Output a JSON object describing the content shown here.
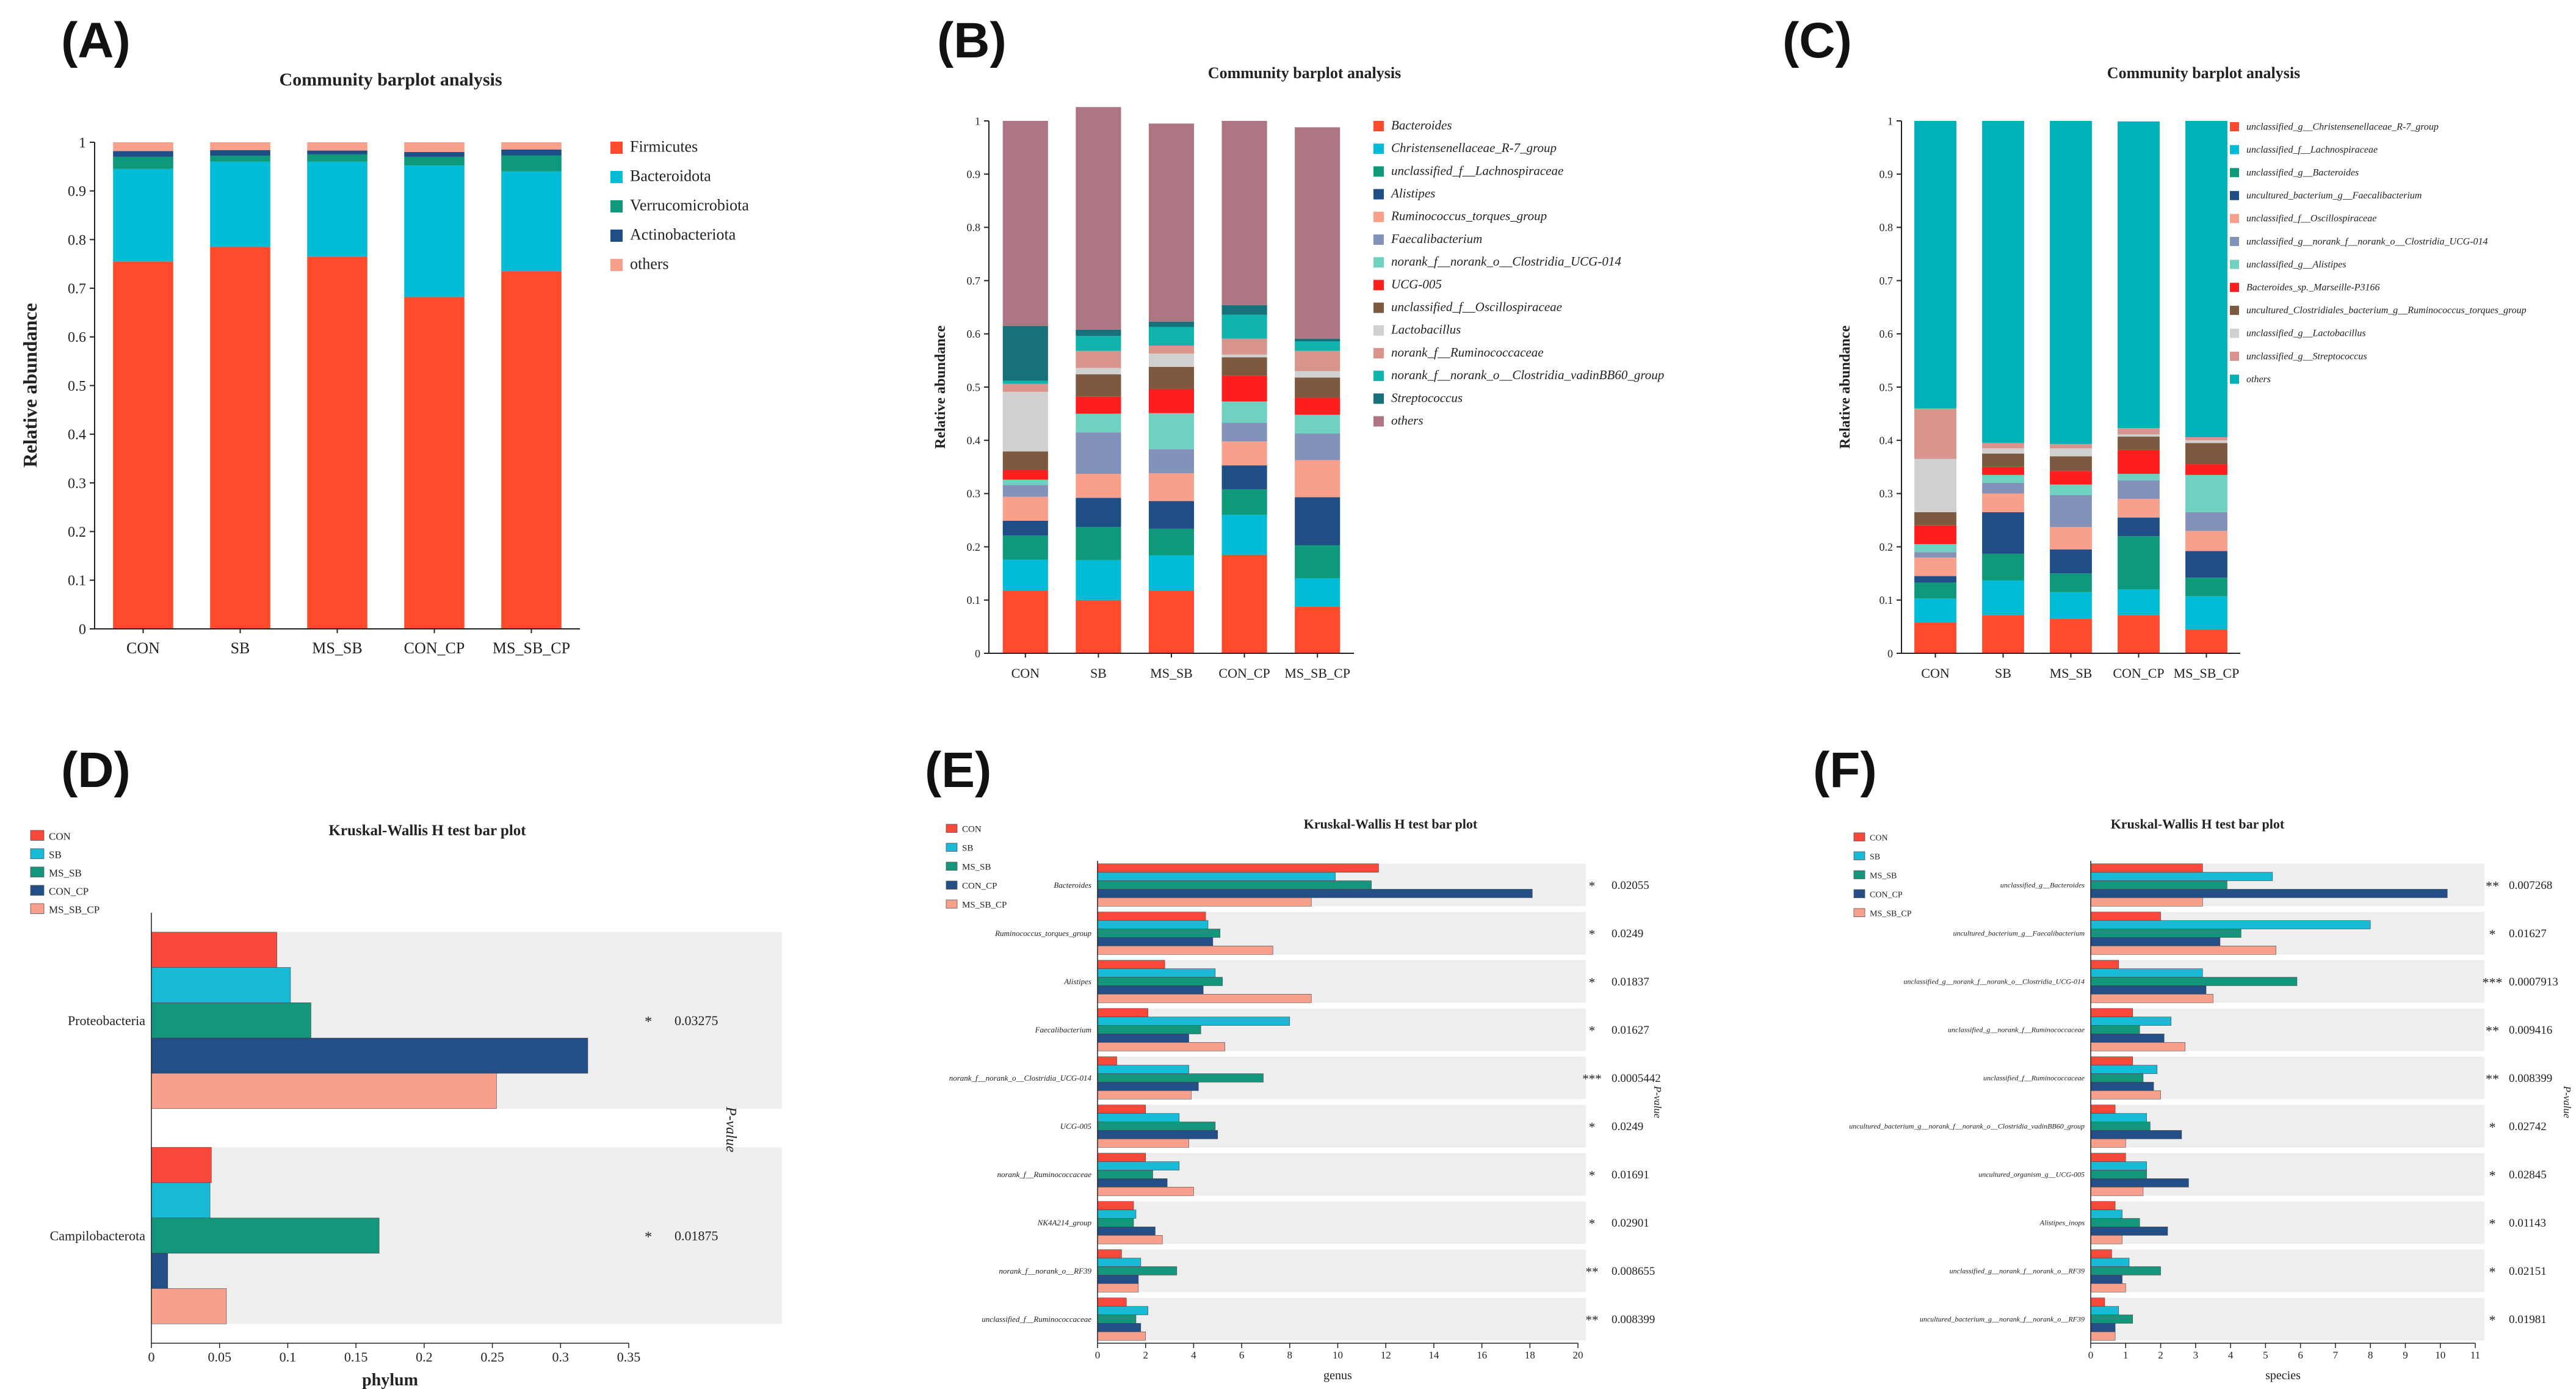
{
  "colors": {
    "axis": "#222222",
    "band": "#eeeeee",
    "sig": "#e8302b",
    "groups": [
      "#f7483a",
      "#17bbd6",
      "#14967c",
      "#244f86",
      "#f9a08c"
    ]
  },
  "panels": {
    "A": {
      "label": "(A)"
    },
    "B": {
      "label": "(B)"
    },
    "C": {
      "label": "(C)"
    },
    "D": {
      "label": "(D)"
    },
    "E": {
      "label": "(E)"
    },
    "F": {
      "label": "(F)"
    }
  },
  "chart_data": [
    {
      "id": "A",
      "type": "stacked-bar",
      "title": "Community barplot analysis",
      "xlabel": "",
      "ylabel": "Relative abundance",
      "ylim": [
        0,
        1
      ],
      "yticks": [
        "0",
        "0.1",
        "0.2",
        "0.3",
        "0.4",
        "0.5",
        "0.6",
        "0.7",
        "0.8",
        "0.9",
        "1"
      ],
      "categories": [
        "CON",
        "SB",
        "MS_SB",
        "CON_CP",
        "MS_SB_CP"
      ],
      "legend_italic": false,
      "series": [
        {
          "name": "Firmicutes",
          "color": "#ff4a2c",
          "values": [
            0.755,
            0.785,
            0.765,
            0.682,
            0.735
          ]
        },
        {
          "name": "Bacteroidota",
          "color": "#00bcd6",
          "values": [
            0.19,
            0.175,
            0.195,
            0.27,
            0.205
          ]
        },
        {
          "name": "Verrucomicrobiota",
          "color": "#0e9a7a",
          "values": [
            0.025,
            0.012,
            0.015,
            0.018,
            0.033
          ]
        },
        {
          "name": "Actinobacteriota",
          "color": "#1f4e86",
          "values": [
            0.012,
            0.012,
            0.008,
            0.01,
            0.012
          ]
        },
        {
          "name": "others",
          "color": "#f9a08c",
          "values": [
            0.018,
            0.016,
            0.017,
            0.02,
            0.015
          ]
        }
      ]
    },
    {
      "id": "B",
      "type": "stacked-bar",
      "title": "Community barplot analysis",
      "xlabel": "",
      "ylabel": "Relative abundance",
      "ylim": [
        0,
        1
      ],
      "yticks": [
        "0",
        "0.1",
        "0.2",
        "0.3",
        "0.4",
        "0.5",
        "0.6",
        "0.7",
        "0.8",
        "0.9",
        "1"
      ],
      "categories": [
        "CON",
        "SB",
        "MS_SB",
        "CON_CP",
        "MS_SB_CP"
      ],
      "legend_italic": true,
      "series": [
        {
          "name": "Bacteroides",
          "color": "#ff4a2c",
          "values": [
            0.118,
            0.1,
            0.118,
            0.185,
            0.088
          ]
        },
        {
          "name": "Christensenellaceae_R-7_group",
          "color": "#00bcd6",
          "values": [
            0.058,
            0.075,
            0.066,
            0.075,
            0.053
          ]
        },
        {
          "name": "unclassified_f__Lachnospiraceae",
          "color": "#0e9a7a",
          "values": [
            0.045,
            0.062,
            0.05,
            0.048,
            0.062
          ]
        },
        {
          "name": "Alistipes",
          "color": "#1f4e86",
          "values": [
            0.028,
            0.055,
            0.052,
            0.045,
            0.09
          ]
        },
        {
          "name": "Ruminococcus_torques_group",
          "color": "#f9a08c",
          "values": [
            0.045,
            0.045,
            0.052,
            0.045,
            0.07
          ]
        },
        {
          "name": "Faecalibacterium",
          "color": "#8392b9",
          "values": [
            0.022,
            0.078,
            0.045,
            0.035,
            0.05
          ]
        },
        {
          "name": "norank_f__norank_o__Clostridia_UCG-014",
          "color": "#6fd1bf",
          "values": [
            0.01,
            0.035,
            0.068,
            0.04,
            0.035
          ]
        },
        {
          "name": "UCG-005",
          "color": "#ff1e1e",
          "values": [
            0.018,
            0.032,
            0.045,
            0.048,
            0.032
          ]
        },
        {
          "name": "unclassified_f__Oscillospiraceae",
          "color": "#7d5a3f",
          "values": [
            0.035,
            0.042,
            0.042,
            0.035,
            0.038
          ]
        },
        {
          "name": "Lactobacillus",
          "color": "#d0d0d0",
          "values": [
            0.112,
            0.012,
            0.025,
            0.005,
            0.012
          ]
        },
        {
          "name": "norank_f__Ruminococcaceae",
          "color": "#d9958d",
          "values": [
            0.015,
            0.032,
            0.015,
            0.03,
            0.038
          ]
        },
        {
          "name": "norank_f__norank_o__Clostridia_vadinBB60_group",
          "color": "#11b3ad",
          "values": [
            0.006,
            0.028,
            0.035,
            0.045,
            0.018
          ]
        },
        {
          "name": "Streptococcus",
          "color": "#16717a",
          "values": [
            0.103,
            0.012,
            0.01,
            0.018,
            0.005
          ]
        },
        {
          "name": "others",
          "color": "#ae7683",
          "values": [
            0.385,
            0.418,
            0.372,
            0.346,
            0.397
          ]
        }
      ]
    },
    {
      "id": "C",
      "type": "stacked-bar",
      "title": "Community barplot analysis",
      "xlabel": "",
      "ylabel": "Relative abundance",
      "ylim": [
        0,
        1
      ],
      "yticks": [
        "0",
        "0.1",
        "0.2",
        "0.3",
        "0.4",
        "0.5",
        "0.6",
        "0.7",
        "0.8",
        "0.9",
        "1"
      ],
      "categories": [
        "CON",
        "SB",
        "MS_SB",
        "CON_CP",
        "MS_SB_CP"
      ],
      "legend_italic": true,
      "series": [
        {
          "name": "unclassified_g__Christensenellaceae_R-7_group",
          "color": "#ff4a2c",
          "values": [
            0.058,
            0.072,
            0.065,
            0.072,
            0.045
          ]
        },
        {
          "name": "unclassified_f__Lachnospiraceae",
          "color": "#00bcd6",
          "values": [
            0.045,
            0.065,
            0.05,
            0.048,
            0.062
          ]
        },
        {
          "name": "unclassified_g__Bacteroides",
          "color": "#0e9a7a",
          "values": [
            0.03,
            0.05,
            0.035,
            0.1,
            0.035
          ]
        },
        {
          "name": "uncultured_bacterium_g__Faecalibacterium",
          "color": "#1f4e86",
          "values": [
            0.012,
            0.078,
            0.045,
            0.035,
            0.05
          ]
        },
        {
          "name": "unclassified_f__Oscillospiraceae",
          "color": "#f9a08c",
          "values": [
            0.035,
            0.035,
            0.042,
            0.035,
            0.038
          ]
        },
        {
          "name": "unclassified_g__norank_f__norank_o__Clostridia_UCG-014",
          "color": "#8392b9",
          "values": [
            0.01,
            0.02,
            0.06,
            0.035,
            0.035
          ]
        },
        {
          "name": "unclassified_g__Alistipes",
          "color": "#6fd1bf",
          "values": [
            0.015,
            0.015,
            0.02,
            0.012,
            0.07
          ]
        },
        {
          "name": "Bacteroides_sp._Marseille-P3166",
          "color": "#ff1e1e",
          "values": [
            0.035,
            0.015,
            0.025,
            0.045,
            0.02
          ]
        },
        {
          "name": "uncultured_Clostridiales_bacterium_g__Ruminococcus_torques_group",
          "color": "#7d5a3f",
          "values": [
            0.025,
            0.025,
            0.028,
            0.025,
            0.04
          ]
        },
        {
          "name": "unclassified_g__Lactobacillus",
          "color": "#d0d0d0",
          "values": [
            0.1,
            0.01,
            0.015,
            0.004,
            0.005
          ]
        },
        {
          "name": "unclassified_g__Streptococcus",
          "color": "#d9958d",
          "values": [
            0.095,
            0.01,
            0.008,
            0.012,
            0.006
          ]
        },
        {
          "name": "others",
          "color": "#00b2b7",
          "values": [
            0.54,
            0.605,
            0.607,
            0.576,
            0.594
          ]
        }
      ]
    },
    {
      "id": "D",
      "type": "grouped-hbar",
      "title": "Kruskal-Wallis H test bar plot",
      "xlabel": "phylum",
      "pvalue_label": "P-value",
      "xlim": [
        0,
        0.35
      ],
      "xticks": [
        "0",
        "0.05",
        "0.1",
        "0.15",
        "0.2",
        "0.25",
        "0.3",
        "0.35"
      ],
      "groups": [
        "CON",
        "SB",
        "MS_SB",
        "CON_CP",
        "MS_SB_CP"
      ],
      "categories": [
        {
          "name": "Proteobacteria",
          "values": [
            0.092,
            0.102,
            0.117,
            0.32,
            0.253
          ],
          "stars": "*",
          "p": "0.03275"
        },
        {
          "name": "Campilobacterota",
          "values": [
            0.044,
            0.043,
            0.167,
            0.012,
            0.055
          ],
          "stars": "*",
          "p": "0.01875"
        }
      ]
    },
    {
      "id": "E",
      "type": "grouped-hbar",
      "title": "Kruskal-Wallis H test bar plot",
      "xlabel": "genus",
      "pvalue_label": "P-value",
      "xlim": [
        0,
        20
      ],
      "xticks": [
        "0",
        "2",
        "4",
        "6",
        "8",
        "10",
        "12",
        "14",
        "16",
        "18",
        "20"
      ],
      "groups": [
        "CON",
        "SB",
        "MS_SB",
        "CON_CP",
        "MS_SB_CP"
      ],
      "categories": [
        {
          "name": "Bacteroides",
          "values": [
            11.7,
            9.9,
            11.4,
            18.1,
            8.9
          ],
          "stars": "*",
          "p": "0.02055"
        },
        {
          "name": "Ruminococcus_torques_group",
          "values": [
            4.5,
            4.6,
            5.1,
            4.8,
            7.3
          ],
          "stars": "*",
          "p": "0.0249"
        },
        {
          "name": "Alistipes",
          "values": [
            2.8,
            4.9,
            5.2,
            4.4,
            8.9
          ],
          "stars": "*",
          "p": "0.01837"
        },
        {
          "name": "Faecalibacterium",
          "values": [
            2.1,
            8.0,
            4.3,
            3.8,
            5.3
          ],
          "stars": "*",
          "p": "0.01627"
        },
        {
          "name": "norank_f__norank_o__Clostridia_UCG-014",
          "values": [
            0.8,
            3.8,
            6.9,
            4.2,
            3.9
          ],
          "stars": "***",
          "p": "0.0005442"
        },
        {
          "name": "UCG-005",
          "values": [
            2.0,
            3.4,
            4.9,
            5.0,
            3.8
          ],
          "stars": "*",
          "p": "0.0249"
        },
        {
          "name": "norank_f__Ruminococcaceae",
          "values": [
            2.0,
            3.4,
            2.3,
            2.9,
            4.0
          ],
          "stars": "*",
          "p": "0.01691"
        },
        {
          "name": "NK4A214_group",
          "values": [
            1.5,
            1.6,
            1.5,
            2.4,
            2.7
          ],
          "stars": "*",
          "p": "0.02901"
        },
        {
          "name": "norank_f__norank_o__RF39",
          "values": [
            1.0,
            1.8,
            3.3,
            1.7,
            1.7
          ],
          "stars": "**",
          "p": "0.008655"
        },
        {
          "name": "unclassified_f__Ruminococcaceae",
          "values": [
            1.2,
            2.1,
            1.6,
            1.8,
            2.0
          ],
          "stars": "**",
          "p": "0.008399"
        }
      ]
    },
    {
      "id": "F",
      "type": "grouped-hbar",
      "title": "Kruskal-Wallis H test bar plot",
      "xlabel": "species",
      "pvalue_label": "P-value",
      "xlim": [
        0,
        11
      ],
      "xticks": [
        "0",
        "1",
        "2",
        "3",
        "4",
        "5",
        "6",
        "7",
        "8",
        "9",
        "10",
        "11"
      ],
      "groups": [
        "CON",
        "SB",
        "MS_SB",
        "CON_CP",
        "MS_SB_CP"
      ],
      "categories": [
        {
          "name": "unclassified_g__Bacteroides",
          "values": [
            3.2,
            5.2,
            3.9,
            10.2,
            3.2
          ],
          "stars": "**",
          "p": "0.007268"
        },
        {
          "name": "uncultured_bacterium_g__Faecalibacterium",
          "values": [
            2.0,
            8.0,
            4.3,
            3.7,
            5.3
          ],
          "stars": "*",
          "p": "0.01627"
        },
        {
          "name": "unclassified_g__norank_f__norank_o__Clostridia_UCG-014",
          "values": [
            0.8,
            3.2,
            5.9,
            3.3,
            3.5
          ],
          "stars": "***",
          "p": "0.0007913"
        },
        {
          "name": "unclassified_g__norank_f__Ruminococcaceae",
          "values": [
            1.2,
            2.3,
            1.4,
            2.1,
            2.7
          ],
          "stars": "**",
          "p": "0.009416"
        },
        {
          "name": "unclassified_f__Ruminococcaceae",
          "values": [
            1.2,
            1.9,
            1.5,
            1.8,
            2.0
          ],
          "stars": "**",
          "p": "0.008399"
        },
        {
          "name": "uncultured_bacterium_g__norank_f__norank_o__Clostridia_vadinBB60_group",
          "values": [
            0.7,
            1.6,
            1.7,
            2.6,
            1.0
          ],
          "stars": "*",
          "p": "0.02742"
        },
        {
          "name": "uncultured_organism_g__UCG-005",
          "values": [
            1.0,
            1.6,
            1.6,
            2.8,
            1.5
          ],
          "stars": "*",
          "p": "0.02845"
        },
        {
          "name": "Alistipes_inops",
          "values": [
            0.7,
            0.9,
            1.4,
            2.2,
            0.9
          ],
          "stars": "*",
          "p": "0.01143"
        },
        {
          "name": "unclassified_g__norank_f__norank_o__RF39",
          "values": [
            0.6,
            1.1,
            2.0,
            0.9,
            1.0
          ],
          "stars": "*",
          "p": "0.02151"
        },
        {
          "name": "uncultured_bacterium_g__norank_f__norank_o__RF39",
          "values": [
            0.4,
            0.8,
            1.2,
            0.7,
            0.7
          ],
          "stars": "*",
          "p": "0.01981"
        }
      ]
    }
  ]
}
